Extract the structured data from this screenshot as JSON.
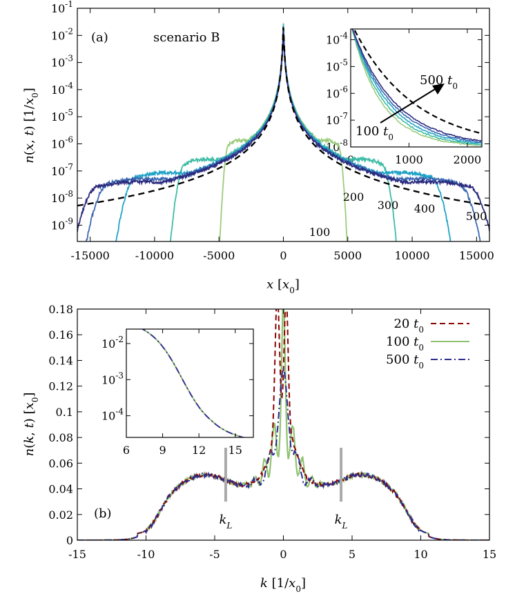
{
  "chart_data": [
    {
      "type": "line",
      "panel_label": "(a)",
      "annotation": "scenario B",
      "xlabel": "x [x0]",
      "ylabel": "n(x,t) [1/x0]",
      "yscale": "log",
      "xlim": [
        -16000,
        16000
      ],
      "ylim_log10": [
        -9.6,
        -1
      ],
      "xticks": [
        "-15000",
        "-10000",
        "-5000",
        "0",
        "5000",
        "10000",
        "15000"
      ],
      "yticks": [
        "10^-9",
        "10^-8",
        "10^-7",
        "10^-6",
        "10^-5",
        "10^-4",
        "10^-3",
        "10^-2",
        "10^-1"
      ],
      "time_labels": [
        "100",
        "200",
        "300",
        "400",
        "500"
      ],
      "colors": {
        "t100": "#9bcb7b",
        "t200": "#3dbba5",
        "t300": "#1fa3c7",
        "t400": "#3a68b0",
        "t500": "#2b2a7e",
        "theory": "#000000"
      },
      "series": [
        {
          "time": 100,
          "color": "#9bcb7b",
          "front": 5000
        },
        {
          "time": 200,
          "color": "#3dbba5",
          "front": 9000
        },
        {
          "time": 300,
          "color": "#1fa3c7",
          "front": 13500
        },
        {
          "time": 400,
          "color": "#3a68b0",
          "front": 16000
        },
        {
          "time": 500,
          "color": "#2b2a7e",
          "front": 17000
        }
      ],
      "inset": {
        "xlim": [
          0,
          2250
        ],
        "ylim_log10": [
          -8,
          -3.6
        ],
        "xticks": [
          "0",
          "1000",
          "2000"
        ],
        "yticks": [
          "10^-8",
          "10^-7",
          "10^-6",
          "10^-5",
          "10^-4"
        ],
        "arrow_from_label": "100 t0",
        "arrow_to_label": "500 t0"
      }
    },
    {
      "type": "line",
      "panel_label": "(b)",
      "xlabel": "k [1/x0]",
      "ylabel": "n(k,t) [x0]",
      "xlim": [
        -15,
        15
      ],
      "ylim": [
        0,
        0.18
      ],
      "xticks": [
        "-15",
        "-10",
        "-5",
        "0",
        "5",
        "10",
        "15"
      ],
      "yticks": [
        "0",
        "0.02",
        "0.04",
        "0.06",
        "0.08",
        "0.1",
        "0.12",
        "0.14",
        "0.16",
        "0.18"
      ],
      "kL_label": "kL",
      "kL_positions": [
        -4.2,
        4.2
      ],
      "legend": {
        "position": "top-right",
        "entries": [
          {
            "label": "20 t0",
            "color": "#8b0000",
            "style": "dashed"
          },
          {
            "label": "100 t0",
            "color": "#8fc26f",
            "style": "solid"
          },
          {
            "label": "500 t0",
            "color": "#2b2a90",
            "style": "dash-dot"
          }
        ]
      },
      "inset": {
        "xlim": [
          6,
          16.5
        ],
        "ylim_log10": [
          -4.6,
          -1.6
        ],
        "xticks": [
          "6",
          "9",
          "12",
          "15"
        ],
        "yticks": [
          "10^-4",
          "10^-3",
          "10^-2"
        ]
      }
    }
  ]
}
